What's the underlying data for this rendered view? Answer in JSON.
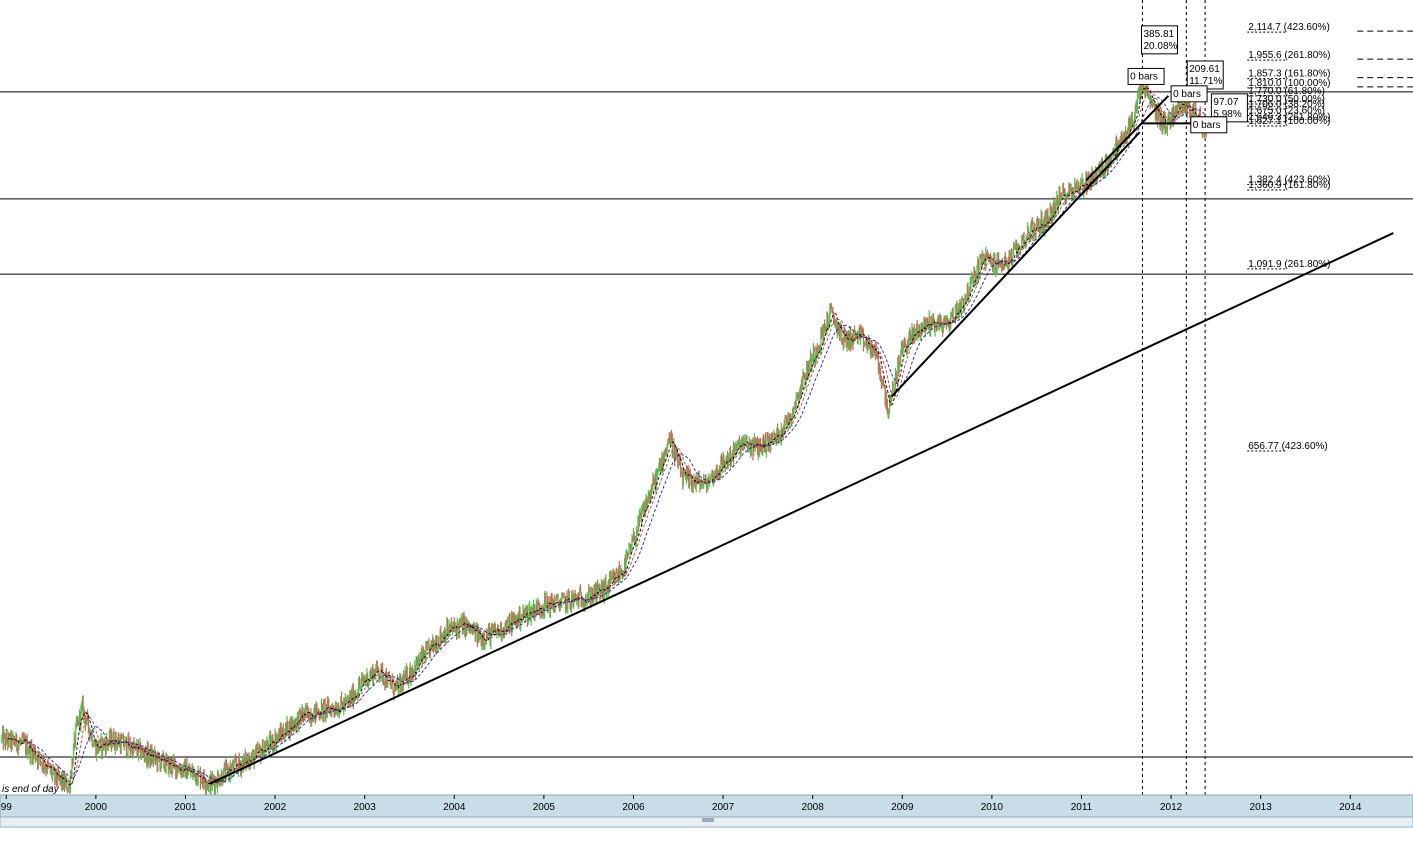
{
  "chart_data": {
    "type": "line",
    "title": "",
    "xlabel": "",
    "ylabel": "",
    "xlim": [
      1998.93,
      2014.7
    ],
    "ylim_log": [
      250,
      2300
    ],
    "x_ticks": [
      {
        "year": 1999.0,
        "label": "99"
      },
      {
        "year": 2000.0,
        "label": "2000"
      },
      {
        "year": 2001.0,
        "label": "2001"
      },
      {
        "year": 2002.0,
        "label": "2002"
      },
      {
        "year": 2003.0,
        "label": "2003"
      },
      {
        "year": 2004.0,
        "label": "2004"
      },
      {
        "year": 2005.0,
        "label": "2005"
      },
      {
        "year": 2006.0,
        "label": "2006"
      },
      {
        "year": 2007.0,
        "label": "2007"
      },
      {
        "year": 2008.0,
        "label": "2008"
      },
      {
        "year": 2009.0,
        "label": "2009"
      },
      {
        "year": 2010.0,
        "label": "2010"
      },
      {
        "year": 2011.0,
        "label": "2011"
      },
      {
        "year": 2012.0,
        "label": "2012"
      },
      {
        "year": 2013.0,
        "label": "2013"
      },
      {
        "year": 2014.0,
        "label": "2014"
      }
    ],
    "series": [
      {
        "values": [
          [
            1998.95,
            292
          ],
          [
            1999.2,
            288
          ],
          [
            1999.4,
            275
          ],
          [
            1999.55,
            262
          ],
          [
            1999.7,
            256
          ],
          [
            1999.78,
            300
          ],
          [
            1999.85,
            318
          ],
          [
            2000.0,
            285
          ],
          [
            2000.2,
            292
          ],
          [
            2000.5,
            282
          ],
          [
            2000.8,
            272
          ],
          [
            2001.0,
            268
          ],
          [
            2001.15,
            264
          ],
          [
            2001.27,
            258
          ],
          [
            2001.5,
            268
          ],
          [
            2001.8,
            280
          ],
          [
            2002.0,
            292
          ],
          [
            2002.3,
            312
          ],
          [
            2002.6,
            318
          ],
          [
            2002.8,
            322
          ],
          [
            2003.0,
            345
          ],
          [
            2003.15,
            355
          ],
          [
            2003.35,
            335
          ],
          [
            2003.6,
            362
          ],
          [
            2003.9,
            395
          ],
          [
            2004.1,
            402
          ],
          [
            2004.3,
            388
          ],
          [
            2004.5,
            395
          ],
          [
            2004.8,
            415
          ],
          [
            2005.0,
            425
          ],
          [
            2005.2,
            428
          ],
          [
            2005.5,
            435
          ],
          [
            2005.7,
            445
          ],
          [
            2005.9,
            472
          ],
          [
            2006.1,
            548
          ],
          [
            2006.3,
            625
          ],
          [
            2006.4,
            680
          ],
          [
            2006.55,
            605
          ],
          [
            2006.8,
            595
          ],
          [
            2007.0,
            630
          ],
          [
            2007.2,
            665
          ],
          [
            2007.4,
            660
          ],
          [
            2007.6,
            680
          ],
          [
            2007.75,
            720
          ],
          [
            2007.9,
            800
          ],
          [
            2008.1,
            900
          ],
          [
            2008.2,
            960
          ],
          [
            2008.35,
            890
          ],
          [
            2008.5,
            900
          ],
          [
            2008.7,
            860
          ],
          [
            2008.85,
            730
          ],
          [
            2009.0,
            870
          ],
          [
            2009.15,
            910
          ],
          [
            2009.3,
            935
          ],
          [
            2009.5,
            930
          ],
          [
            2009.7,
            1000
          ],
          [
            2009.9,
            1120
          ],
          [
            2010.05,
            1100
          ],
          [
            2010.2,
            1110
          ],
          [
            2010.4,
            1200
          ],
          [
            2010.6,
            1240
          ],
          [
            2010.8,
            1340
          ],
          [
            2011.0,
            1370
          ],
          [
            2011.2,
            1420
          ],
          [
            2011.35,
            1500
          ],
          [
            2011.5,
            1580
          ],
          [
            2011.6,
            1680
          ],
          [
            2011.67,
            1820
          ],
          [
            2011.8,
            1700
          ],
          [
            2011.95,
            1620
          ],
          [
            2012.05,
            1700
          ],
          [
            2012.15,
            1730
          ],
          [
            2012.3,
            1660
          ],
          [
            2012.4,
            1590
          ]
        ]
      }
    ],
    "horizontal_lines": [
      1780,
      1320,
      1070,
      278
    ],
    "trendlines": [
      {
        "from": [
          2001.27,
          258
        ],
        "to": [
          2014.48,
          1200
        ]
      },
      {
        "from": [
          2008.88,
          760
        ],
        "to": [
          2011.65,
          1590
        ]
      },
      {
        "from": [
          2011.05,
          1390
        ],
        "to": [
          2011.97,
          1760
        ]
      },
      {
        "from": [
          2011.67,
          1630
        ],
        "to": [
          2012.38,
          1630
        ]
      }
    ],
    "vertical_markers": [
      2011.68,
      2012.17,
      2012.38
    ],
    "fib_levels": [
      {
        "value": 2114.7,
        "label": "2,114.7 (423.60%)"
      },
      {
        "value": 1955.6,
        "label": "1,955.6 (261.80%)"
      },
      {
        "value": 1857.3,
        "label": "1,857.3 (161.80%)"
      },
      {
        "value": 1810.0,
        "label": "1,810.0 (100.00%)"
      },
      {
        "value": 1770.0,
        "label": "1,770.0 (61.80%)"
      },
      {
        "value": 1730.0,
        "label": "1,730.0 (50.00%)"
      },
      {
        "value": 1706.0,
        "label": "1,706.0 (38.20%)"
      },
      {
        "value": 1675.0,
        "label": "1,675.0 (23.60%)"
      },
      {
        "value": 1646.3,
        "label": "1,646.3 (261.80%)"
      },
      {
        "value": 1627.1,
        "label": "1,627.1 (100.00%)"
      },
      {
        "value": 1382.4,
        "label": "1,382.4 (423.60%)"
      },
      {
        "value": 1360.9,
        "label": "1,360.9 (161.80%)"
      },
      {
        "value": 1091.9,
        "label": "1,091.9 (261.80%)"
      },
      {
        "value": 656.77,
        "label": "656.77 (423.60%)"
      }
    ],
    "boxes": [
      {
        "x": 2011.67,
        "y": 2140,
        "lines": [
          "385.81",
          "20.08%"
        ]
      },
      {
        "x": 2012.18,
        "y": 1940,
        "lines": [
          "209.61",
          "11.71%"
        ]
      },
      {
        "x": 2011.52,
        "y": 1900,
        "lines": [
          "0 bars"
        ]
      },
      {
        "x": 2012.0,
        "y": 1810,
        "lines": [
          "0 bars"
        ]
      },
      {
        "x": 2012.45,
        "y": 1770,
        "lines": [
          "97.07",
          "5.98%"
        ]
      },
      {
        "x": 2012.22,
        "y": 1660,
        "lines": [
          "0 bars"
        ]
      }
    ]
  },
  "footer": {
    "note": "is end of day"
  },
  "colors": {
    "up_bar": "#4cc44c",
    "down_bar": "#d86060",
    "ma_fast": "#c04040",
    "ma_slow": "#2020a0",
    "axis_bg": "#c8dde8"
  }
}
